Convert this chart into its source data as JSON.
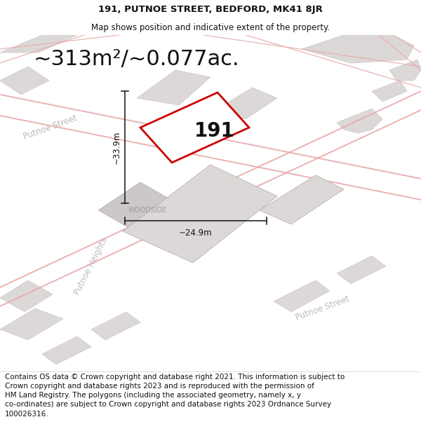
{
  "title_line1": "191, PUTNOE STREET, BEDFORD, MK41 8JR",
  "title_line2": "Map shows position and indicative extent of the property.",
  "area_text": "~313m²/~0.077ac.",
  "property_label": "191",
  "dim_vertical": "~33.9m",
  "dim_horizontal": "~24.9m",
  "street_label1": "Putnoe Street",
  "street_label2": "Putnoe Street",
  "street_label3": "Putnoe Heights",
  "street_label4": "WOODSIDE",
  "footer_text": "Contains OS data © Crown copyright and database right 2021. This information is subject to\nCrown copyright and database rights 2023 and is reproduced with the permission of\nHM Land Registry. The polygons (including the associated geometry, namely x, y\nco-ordinates) are subject to Crown copyright and database rights 2023 Ordnance Survey\n100026316.",
  "bg_color": "#f8f4f4",
  "road_color": "#e8aaaa",
  "building_light": "#ddd8d8",
  "building_dark": "#ccc8c8",
  "property_fill": "#ffffff",
  "property_edge": "#cc0000",
  "dim_line_color": "#111111",
  "street_color": "#bbbbbb",
  "title_fontsize": 9.5,
  "subtitle_fontsize": 8.5,
  "area_fontsize": 22,
  "street_fontsize": 9,
  "footer_fontsize": 7.5,
  "woodside_fontsize": 7
}
